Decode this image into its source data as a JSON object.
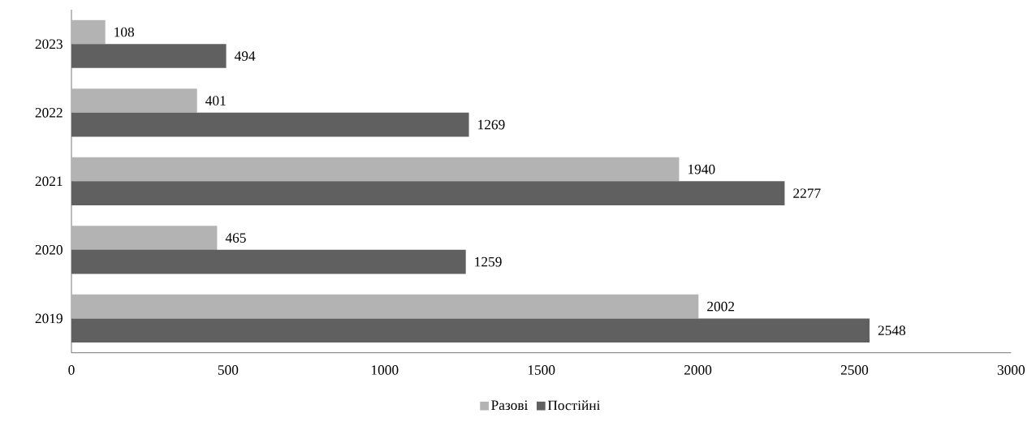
{
  "chart_data": {
    "type": "bar",
    "orientation": "horizontal",
    "categories": [
      "2023",
      "2022",
      "2021",
      "2020",
      "2019"
    ],
    "series": [
      {
        "name": "Разові",
        "color": "#b3b3b3",
        "values": [
          108,
          401,
          1940,
          465,
          2002
        ]
      },
      {
        "name": "Постійні",
        "color": "#606060",
        "values": [
          494,
          1269,
          2277,
          1259,
          2548
        ]
      }
    ],
    "xlim": [
      0,
      3000
    ],
    "xticks": [
      0,
      500,
      1000,
      1500,
      2000,
      2500,
      3000
    ],
    "data_labels": true,
    "legend": "bottom",
    "grid": false
  }
}
